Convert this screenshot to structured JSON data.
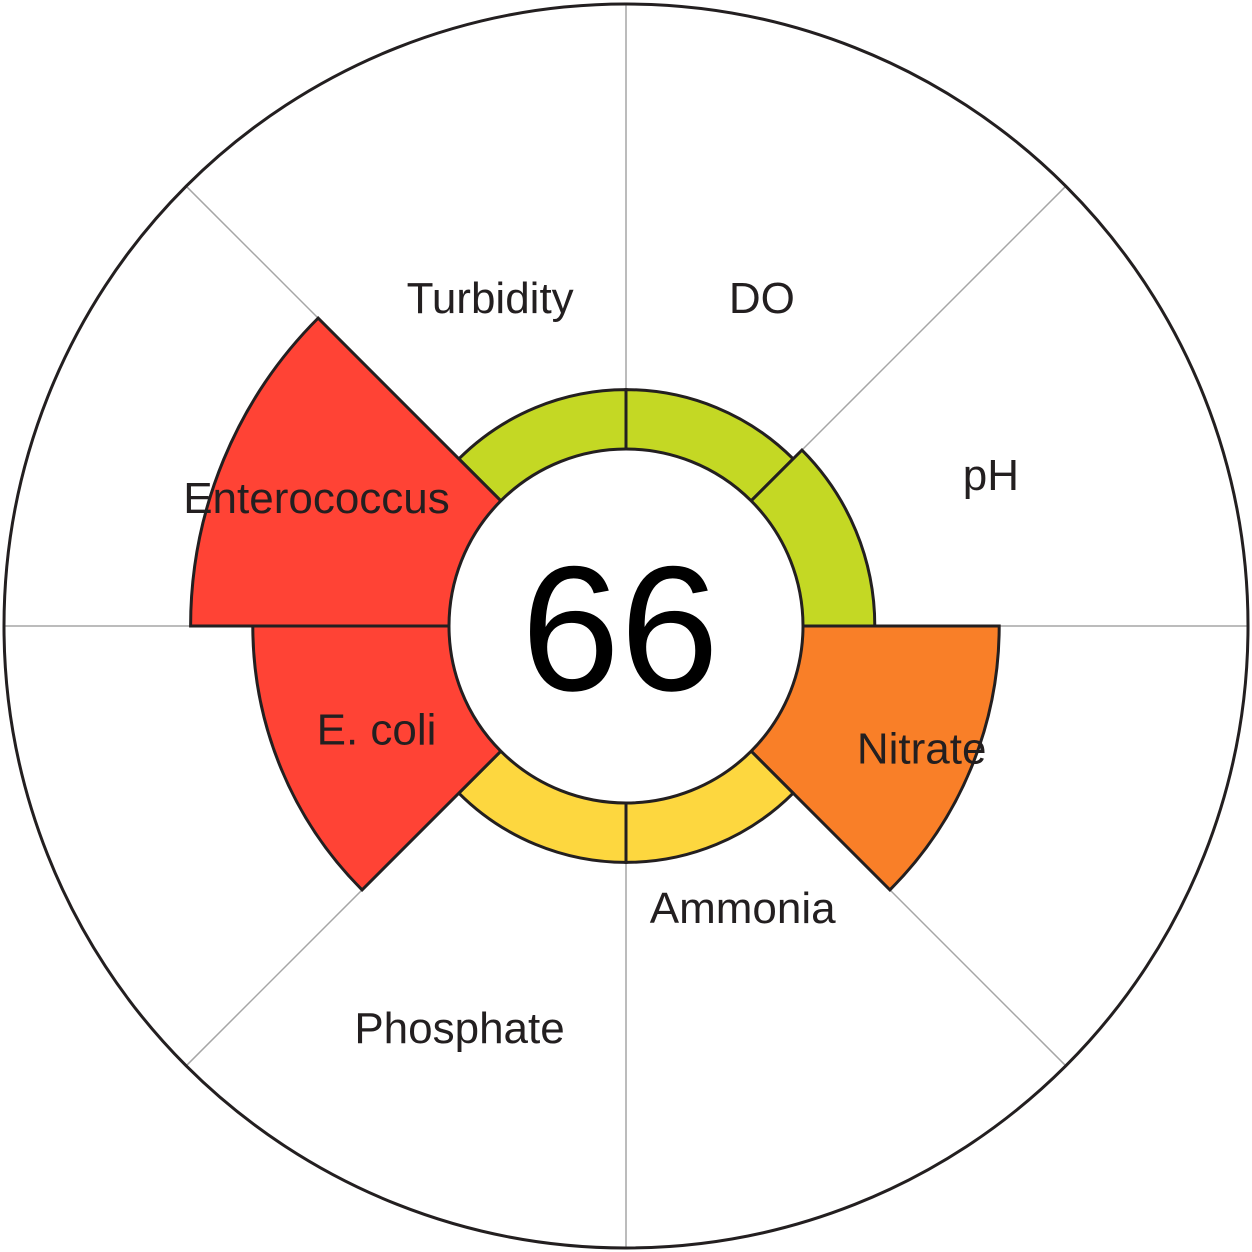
{
  "chart_data": {
    "type": "polar-area",
    "score": "66",
    "r_max": 100,
    "sectors": [
      {
        "label": "Turbidity",
        "value": 38,
        "status": "good"
      },
      {
        "label": "DO",
        "value": 38,
        "status": "good"
      },
      {
        "label": "pH",
        "value": 40,
        "status": "good"
      },
      {
        "label": "Nitrate",
        "value": 60,
        "status": "poor"
      },
      {
        "label": "Ammonia",
        "value": 38,
        "status": "fair"
      },
      {
        "label": "Phosphate",
        "value": 38,
        "status": "fair"
      },
      {
        "label": "E. coli",
        "value": 60,
        "status": "bad"
      },
      {
        "label": "Enterococcus",
        "value": 70,
        "status": "bad"
      }
    ],
    "status_colors": {
      "good": "#c4d824",
      "fair": "#fdd73f",
      "poor": "#f97f28",
      "bad": "#ff4335"
    }
  }
}
